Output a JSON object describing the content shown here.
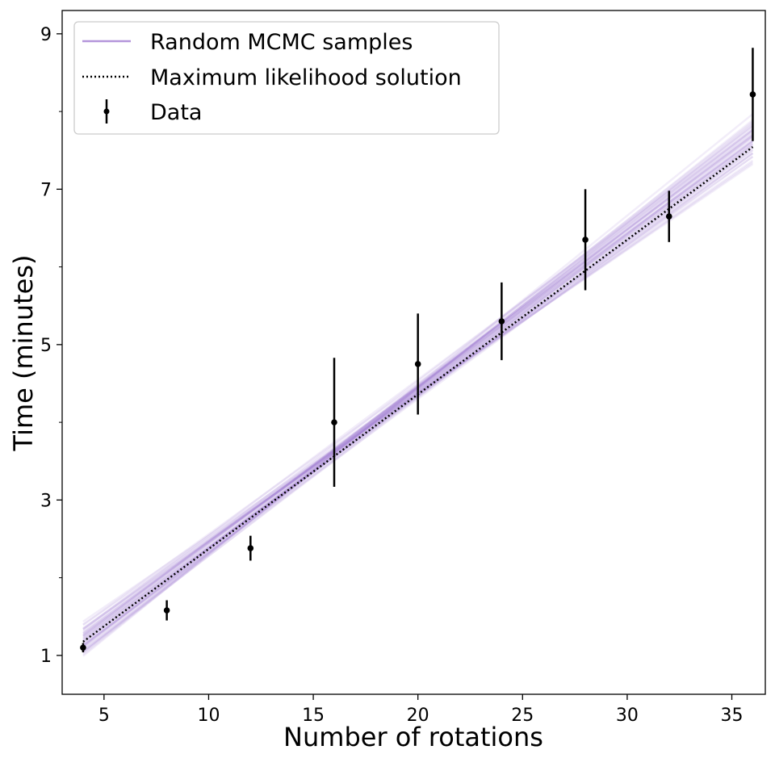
{
  "chart_data": {
    "type": "line",
    "xlabel": "Number of rotations",
    "ylabel": "Time (minutes)",
    "xlim": [
      3.0,
      36.6
    ],
    "ylim": [
      0.5,
      9.3
    ],
    "x_ticks": [
      5,
      10,
      15,
      20,
      25,
      30,
      35
    ],
    "y_ticks": [
      1,
      3,
      5,
      7,
      9
    ],
    "y_minor_ticks": [
      2,
      4,
      6,
      8
    ],
    "grid": false,
    "legend_position": "top-left",
    "series": [
      {
        "name": "Random MCMC samples",
        "kind": "line-ensemble",
        "color": "#9b72cf",
        "samples": [
          {
            "intercept": 0.42,
            "slope": 0.202
          },
          {
            "intercept": 0.3,
            "slope": 0.206
          },
          {
            "intercept": 0.5,
            "slope": 0.196
          },
          {
            "intercept": 0.25,
            "slope": 0.21
          },
          {
            "intercept": 0.38,
            "slope": 0.199
          },
          {
            "intercept": 0.55,
            "slope": 0.192
          },
          {
            "intercept": 0.2,
            "slope": 0.212
          },
          {
            "intercept": 0.45,
            "slope": 0.201
          },
          {
            "intercept": 0.35,
            "slope": 0.204
          },
          {
            "intercept": 0.6,
            "slope": 0.188
          },
          {
            "intercept": 0.28,
            "slope": 0.208
          },
          {
            "intercept": 0.48,
            "slope": 0.197
          },
          {
            "intercept": 0.15,
            "slope": 0.215
          },
          {
            "intercept": 0.4,
            "slope": 0.203
          },
          {
            "intercept": 0.52,
            "slope": 0.194
          },
          {
            "intercept": 0.33,
            "slope": 0.2
          },
          {
            "intercept": 0.22,
            "slope": 0.209
          },
          {
            "intercept": 0.65,
            "slope": 0.186
          },
          {
            "intercept": 0.37,
            "slope": 0.205
          },
          {
            "intercept": 0.46,
            "slope": 0.199
          },
          {
            "intercept": 0.27,
            "slope": 0.211
          },
          {
            "intercept": 0.58,
            "slope": 0.19
          },
          {
            "intercept": 0.32,
            "slope": 0.207
          },
          {
            "intercept": 0.44,
            "slope": 0.195
          },
          {
            "intercept": 0.18,
            "slope": 0.213
          },
          {
            "intercept": 0.7,
            "slope": 0.184
          },
          {
            "intercept": 0.36,
            "slope": 0.202
          },
          {
            "intercept": 0.49,
            "slope": 0.198
          },
          {
            "intercept": 0.24,
            "slope": 0.204
          },
          {
            "intercept": 0.53,
            "slope": 0.201
          },
          {
            "intercept": 0.62,
            "slope": 0.194
          },
          {
            "intercept": 0.12,
            "slope": 0.218
          },
          {
            "intercept": 0.41,
            "slope": 0.197
          },
          {
            "intercept": 0.31,
            "slope": 0.203
          },
          {
            "intercept": 0.56,
            "slope": 0.195
          },
          {
            "intercept": 0.26,
            "slope": 0.206
          },
          {
            "intercept": 0.43,
            "slope": 0.205
          },
          {
            "intercept": 0.34,
            "slope": 0.198
          },
          {
            "intercept": 0.47,
            "slope": 0.193
          },
          {
            "intercept": 0.21,
            "slope": 0.207
          }
        ]
      },
      {
        "name": "Maximum likelihood solution",
        "kind": "line",
        "color": "#000000",
        "style": "dotted",
        "intercept": 0.38,
        "slope": 0.199
      },
      {
        "name": "Data",
        "kind": "errorbar",
        "color": "#000000",
        "x": [
          4,
          8,
          12,
          16,
          20,
          24,
          28,
          32,
          36
        ],
        "y": [
          1.1,
          1.58,
          2.38,
          4.0,
          4.75,
          5.3,
          6.35,
          6.65,
          8.22
        ],
        "yerr": [
          0.06,
          0.13,
          0.16,
          0.83,
          0.65,
          0.5,
          0.65,
          0.33,
          0.6
        ]
      }
    ]
  }
}
